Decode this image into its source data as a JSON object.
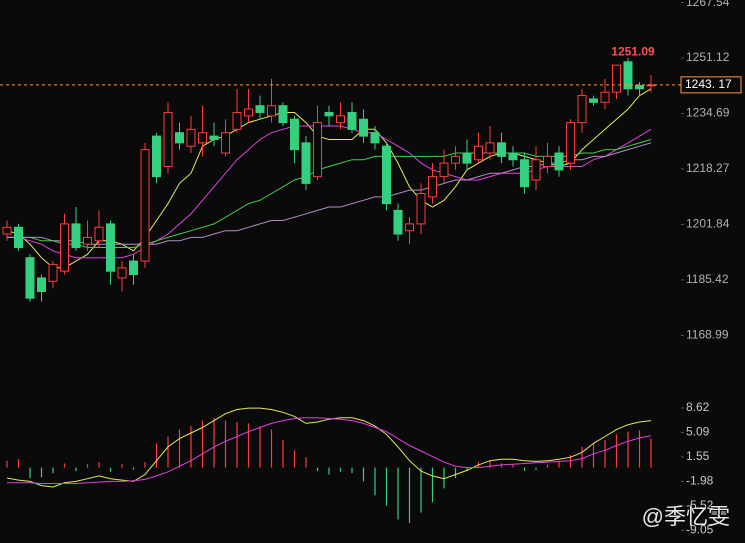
{
  "chart_data": [
    {
      "type": "candlestick",
      "open": [
        1199,
        1201,
        1192,
        1186,
        1185,
        1188,
        1202,
        1196,
        1197,
        1202,
        1186,
        1191,
        1191,
        1228,
        1219,
        1229,
        1225,
        1226,
        1228,
        1223,
        1230,
        1234,
        1237,
        1234,
        1237,
        1233,
        1226,
        1216,
        1235,
        1232,
        1235,
        1233,
        1229,
        1225,
        1206,
        1200,
        1202,
        1210,
        1216,
        1220,
        1223,
        1221,
        1223,
        1226,
        1223,
        1221,
        1215,
        1219,
        1223,
        1220,
        1232,
        1239,
        1238,
        1241,
        1250,
        1243,
        1243
      ],
      "high": [
        1203,
        1202,
        1193,
        1187,
        1191,
        1205,
        1207,
        1203,
        1206,
        1203,
        1191,
        1193,
        1226,
        1229,
        1238,
        1232,
        1234,
        1237,
        1232,
        1233,
        1242,
        1242,
        1240,
        1245,
        1238,
        1234,
        1228,
        1237,
        1237,
        1238,
        1238,
        1236,
        1231,
        1226,
        1208,
        1204,
        1214,
        1220,
        1224,
        1225,
        1227,
        1229,
        1231,
        1229,
        1225,
        1223,
        1225,
        1226,
        1225,
        1233,
        1242,
        1240,
        1245,
        1249,
        1251.09,
        1244,
        1246
      ],
      "low": [
        1197,
        1194,
        1179,
        1179,
        1183,
        1187,
        1194,
        1194,
        1195,
        1184,
        1182,
        1184,
        1189,
        1214,
        1217,
        1224,
        1223,
        1222,
        1225,
        1222,
        1229,
        1232,
        1233,
        1232,
        1231,
        1220,
        1212,
        1215,
        1231,
        1230,
        1229,
        1226,
        1224,
        1206,
        1197,
        1196,
        1199,
        1208,
        1214,
        1218,
        1218,
        1220,
        1221,
        1220,
        1219,
        1211,
        1212,
        1217,
        1216,
        1218,
        1229,
        1237,
        1236,
        1239,
        1240,
        1240,
        1241
      ],
      "close": [
        1201,
        1195,
        1180,
        1182,
        1190,
        1202,
        1195,
        1198,
        1201,
        1188,
        1189,
        1187,
        1224,
        1216,
        1235,
        1226,
        1230,
        1229,
        1227,
        1229,
        1235,
        1236,
        1235,
        1237,
        1232,
        1224,
        1214,
        1232,
        1234,
        1234,
        1230,
        1228,
        1226,
        1208,
        1199,
        1202,
        1211,
        1216,
        1220,
        1222,
        1220,
        1225,
        1226,
        1222,
        1221,
        1213,
        1221,
        1222,
        1218,
        1232,
        1240,
        1238,
        1241,
        1249,
        1242,
        1242,
        1243.17
      ],
      "up_color": "#ff3b3b",
      "down_color": "#35d07f",
      "series": [
        {
          "color": "#e8e85a",
          "values": [
            1200,
            1199,
            1196,
            1192,
            1189,
            1189,
            1191,
            1193,
            1197,
            1197,
            1196,
            1194,
            1198,
            1203,
            1208,
            1214,
            1217,
            1225,
            1227,
            1228,
            1230,
            1232,
            1233,
            1234,
            1235,
            1235,
            1232,
            1228,
            1227,
            1227,
            1227,
            1230,
            1230,
            1226,
            1220,
            1213,
            1209,
            1207,
            1209,
            1213,
            1218,
            1220,
            1222,
            1223,
            1223,
            1222,
            1221,
            1220,
            1219,
            1220,
            1224,
            1227,
            1230,
            1233,
            1236,
            1240,
            1242
          ]
        },
        {
          "color": "#e040e0",
          "values": [
            1198,
            1198,
            1197,
            1196,
            1194,
            1193,
            1192,
            1192,
            1192,
            1192,
            1192,
            1193,
            1195,
            1197,
            1199,
            1202,
            1205,
            1209,
            1213,
            1217,
            1221,
            1224,
            1227,
            1229,
            1230,
            1231,
            1231,
            1231,
            1231,
            1231,
            1230,
            1229,
            1229,
            1227,
            1225,
            1223,
            1220,
            1218,
            1217,
            1216,
            1215,
            1215,
            1216,
            1217,
            1217,
            1217,
            1218,
            1219,
            1219,
            1219,
            1219,
            1221,
            1222,
            1224,
            1226,
            1228,
            1230
          ]
        },
        {
          "color": "#3fd04a",
          "values": [
            1198,
            1198,
            1198,
            1197,
            1197,
            1196,
            1196,
            1195,
            1195,
            1195,
            1195,
            1195,
            1196,
            1197,
            1198,
            1199,
            1200,
            1201,
            1202,
            1204,
            1206,
            1208,
            1209,
            1211,
            1213,
            1215,
            1216,
            1218,
            1219,
            1220,
            1221,
            1221,
            1222,
            1222,
            1222,
            1222,
            1222,
            1222,
            1222,
            1223,
            1223,
            1223,
            1223,
            1223,
            1223,
            1223,
            1222,
            1222,
            1222,
            1222,
            1223,
            1223,
            1224,
            1224,
            1225,
            1226,
            1227
          ]
        },
        {
          "color": "#b48cc8",
          "values": [
            1198,
            1198,
            1198,
            1198,
            1197,
            1197,
            1197,
            1196,
            1196,
            1196,
            1196,
            1196,
            1196,
            1196,
            1197,
            1197,
            1198,
            1198,
            1199,
            1200,
            1200,
            1201,
            1202,
            1203,
            1203,
            1204,
            1205,
            1206,
            1207,
            1207,
            1208,
            1209,
            1210,
            1210,
            1211,
            1212,
            1212,
            1213,
            1214,
            1215,
            1215,
            1216,
            1217,
            1217,
            1218,
            1219,
            1219,
            1220,
            1220,
            1221,
            1221,
            1222,
            1222,
            1223,
            1224,
            1225,
            1226
          ]
        }
      ],
      "ylim": [
        1154.3,
        1268.3
      ],
      "yticks": [
        1267.54,
        1251.12,
        1234.69,
        1218.27,
        1201.84,
        1185.42,
        1168.99
      ],
      "last_price": {
        "value": 1243.17,
        "label": "1243. 17"
      },
      "high_label": 1251.09
    },
    {
      "type": "macd",
      "values": [
        1.0,
        1.2,
        -1.5,
        -1.4,
        -0.8,
        0.6,
        -0.5,
        0.5,
        0.8,
        -0.6,
        0.5,
        -0.3,
        0.8,
        3.5,
        4.5,
        5.5,
        6.0,
        6.8,
        7.2,
        6.8,
        6.6,
        6.4,
        6.0,
        5.5,
        4.0,
        2.5,
        1.5,
        -0.5,
        -1.0,
        -0.6,
        -0.8,
        -2.0,
        -4.0,
        -5.5,
        -7.5,
        -8.0,
        -6.5,
        -5.0,
        -3.0,
        -1.5,
        -0.5,
        0.8,
        1.0,
        0.6,
        0.5,
        -0.5,
        -0.3,
        0.4,
        1.0,
        1.8,
        3.0,
        3.5,
        4.0,
        4.8,
        5.2,
        5.4,
        4.2
      ],
      "up_color": "#ff3b3b",
      "down_color": "#35d07f",
      "series": [
        {
          "color": "#e8e85a",
          "values": [
            -1.5,
            -1.8,
            -2.0,
            -2.6,
            -2.8,
            -2.2,
            -2.0,
            -1.6,
            -1.2,
            -1.6,
            -1.8,
            -2.0,
            -1.0,
            1.0,
            3.0,
            4.2,
            5.0,
            5.8,
            6.8,
            7.8,
            8.4,
            8.6,
            8.6,
            8.4,
            8.0,
            7.4,
            6.4,
            6.6,
            7.0,
            7.2,
            7.2,
            6.8,
            6.0,
            4.8,
            3.0,
            1.0,
            -0.5,
            -1.2,
            -1.6,
            -1.0,
            -0.4,
            0.4,
            1.0,
            1.2,
            1.2,
            1.0,
            0.9,
            1.0,
            1.2,
            1.5,
            2.2,
            3.5,
            4.5,
            5.5,
            6.2,
            6.6,
            6.8
          ]
        },
        {
          "color": "#e040e0",
          "values": [
            -2.2,
            -2.2,
            -2.2,
            -2.3,
            -2.3,
            -2.3,
            -2.3,
            -2.2,
            -2.1,
            -2.0,
            -2.0,
            -1.9,
            -1.7,
            -1.2,
            -0.6,
            0.2,
            1.0,
            2.0,
            3.0,
            3.8,
            4.5,
            5.2,
            5.8,
            6.4,
            6.8,
            7.1,
            7.2,
            7.2,
            7.1,
            7.0,
            6.8,
            6.4,
            5.8,
            5.2,
            4.2,
            3.2,
            2.4,
            1.6,
            0.8,
            0.2,
            0.0,
            0.0,
            0.2,
            0.4,
            0.5,
            0.6,
            0.7,
            0.8,
            0.9,
            1.0,
            1.3,
            2.0,
            2.5,
            3.2,
            3.8,
            4.3,
            4.6
          ]
        }
      ],
      "ylim": [
        -10.9,
        10.5
      ],
      "yticks": [
        8.62,
        5.09,
        1.55,
        -1.98,
        -5.52,
        -9.05
      ]
    }
  ],
  "watermark": "@季忆雯"
}
